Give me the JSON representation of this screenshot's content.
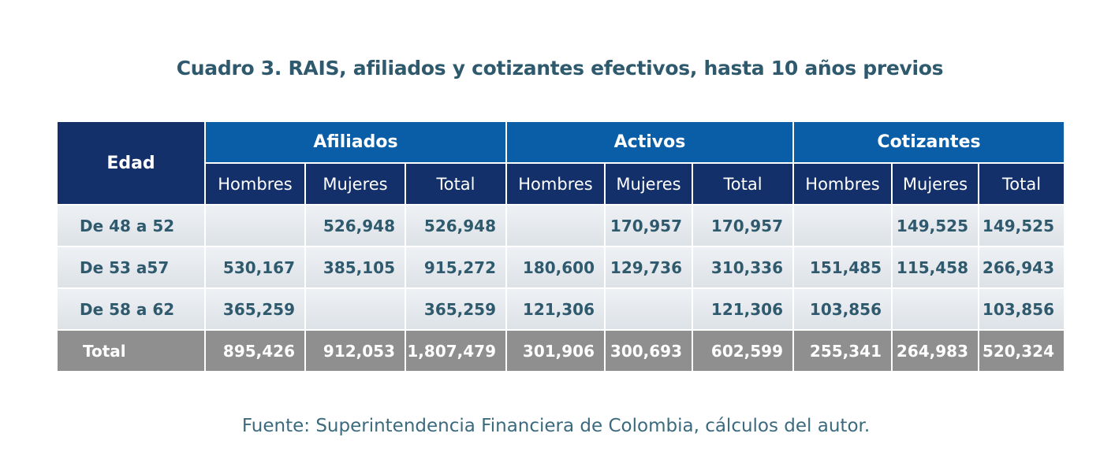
{
  "title": "Cuadro 3. RAIS, afiliados y cotizantes efectivos, hasta 10 años previos",
  "table": {
    "edad_header": "Edad",
    "groups": [
      "Afiliados",
      "Activos",
      "Cotizantes"
    ],
    "subheaders": [
      "Hombres",
      "Mujeres",
      "Total",
      "Hombres",
      "Mujeres",
      "Total",
      "Hombres",
      "Mujeres",
      "Total"
    ],
    "rows": [
      {
        "label": "De 48 a 52",
        "cells": [
          "",
          "526,948",
          "526,948",
          "",
          "170,957",
          "170,957",
          "",
          "149,525",
          "149,525"
        ]
      },
      {
        "label": "De 53 a57",
        "cells": [
          "530,167",
          "385,105",
          "915,272",
          "180,600",
          "129,736",
          "310,336",
          "151,485",
          "115,458",
          "266,943"
        ]
      },
      {
        "label": "De 58 a 62",
        "cells": [
          "365,259",
          "",
          "365,259",
          "121,306",
          "",
          "121,306",
          "103,856",
          "",
          "103,856"
        ]
      }
    ],
    "total_row": {
      "label": "Total",
      "cells": [
        "895,426",
        "912,053",
        "1,807,479",
        "301,906",
        "300,693",
        "602,599",
        "255,341",
        "264,983",
        "520,324"
      ]
    }
  },
  "source": "Fuente: Superintendencia Financiera de Colombia, cálculos del autor."
}
